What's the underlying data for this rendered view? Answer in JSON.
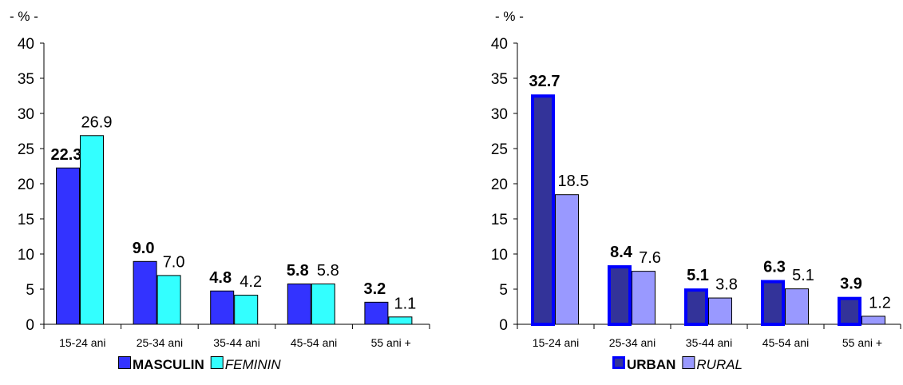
{
  "chart_data": [
    {
      "type": "bar",
      "unit_label": "- % -",
      "categories": [
        "15-24 ani",
        "25-34 ani",
        "35-44 ani",
        "45-54 ani",
        "55 ani +"
      ],
      "yticks": [
        "0",
        "5",
        "10",
        "15",
        "20",
        "25",
        "30",
        "35",
        "40"
      ],
      "ylim": [
        0,
        40
      ],
      "series": [
        {
          "name": "MASCULIN",
          "values": [
            22.3,
            9.0,
            4.8,
            5.8,
            3.2
          ],
          "labels": [
            "22.3",
            "9.0",
            "4.8",
            "5.8",
            "3.2"
          ],
          "color": "#3333ff",
          "stroke": "#000000",
          "bold": true,
          "italic": false
        },
        {
          "name": "FEMININ",
          "values": [
            26.9,
            7.0,
            4.2,
            5.8,
            1.1
          ],
          "labels": [
            "26.9",
            "7.0",
            "4.2",
            "5.8",
            "1.1"
          ],
          "color": "#33ffff",
          "stroke": "#000000",
          "bold": false,
          "italic": true
        }
      ],
      "legend_position": "bottom"
    },
    {
      "type": "bar",
      "unit_label": "- % -",
      "categories": [
        "15-24 ani",
        "25-34 ani",
        "35-44 ani",
        "45-54 ani",
        "55 ani +"
      ],
      "yticks": [
        "0",
        "5",
        "10",
        "15",
        "20",
        "25",
        "30",
        "35",
        "40"
      ],
      "ylim": [
        0,
        40
      ],
      "series": [
        {
          "name": "URBAN",
          "values": [
            32.7,
            8.4,
            5.1,
            6.3,
            3.9
          ],
          "labels": [
            "32.7",
            "8.4",
            "5.1",
            "6.3",
            "3.9"
          ],
          "color": "#333399",
          "stroke": "#0000ff",
          "bold": true,
          "italic": false
        },
        {
          "name": "RURAL",
          "values": [
            18.5,
            7.6,
            3.8,
            5.1,
            1.2
          ],
          "labels": [
            "18.5",
            "7.6",
            "3.8",
            "5.1",
            "1.2"
          ],
          "color": "#9999ff",
          "stroke": "#000000",
          "bold": false,
          "italic": true
        }
      ],
      "legend_position": "bottom"
    }
  ]
}
